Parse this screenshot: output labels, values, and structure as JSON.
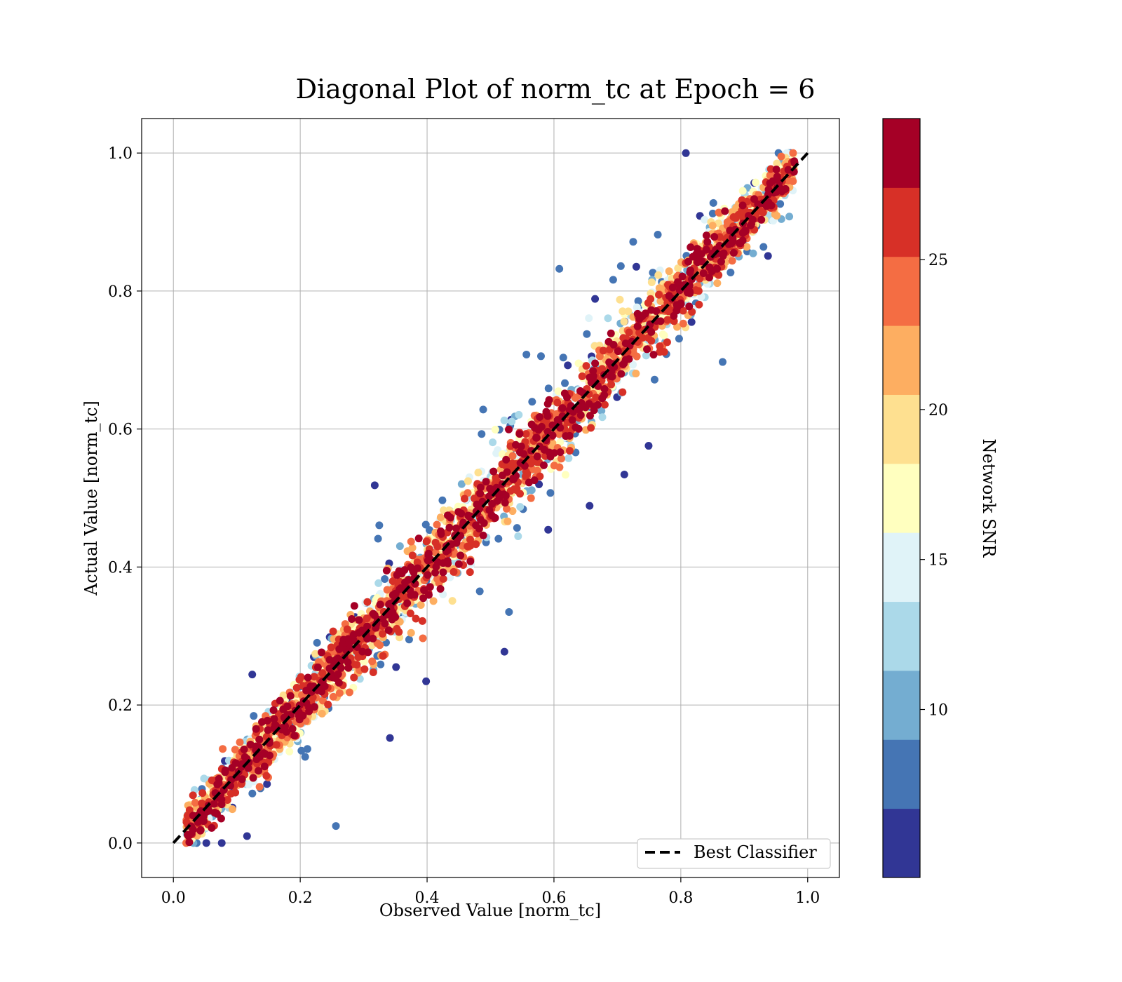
{
  "chart_data": {
    "type": "scatter",
    "title": "Diagonal Plot of norm_tc at Epoch = 6",
    "xlabel": "Observed Value [norm_tc]",
    "ylabel": "Actual Value [norm_tc]",
    "xlim": [
      -0.05,
      1.05
    ],
    "ylim": [
      -0.05,
      1.05
    ],
    "xticks": [
      "0.0",
      "0.2",
      "0.4",
      "0.6",
      "0.8",
      "1.0"
    ],
    "yticks": [
      "0.0",
      "0.2",
      "0.4",
      "0.6",
      "0.8",
      "1.0"
    ],
    "grid": true,
    "reference_line": {
      "label": "Best Classifier",
      "x": [
        0.0,
        1.0
      ],
      "y": [
        0.0,
        1.0
      ],
      "style": "dashed",
      "color": "#000000"
    },
    "legend": {
      "placement": "bottom-right",
      "entries": [
        "Best Classifier"
      ]
    },
    "colorbar": {
      "label": "Network SNR",
      "range": [
        4.4,
        29.7
      ],
      "ticks": [
        "10",
        "15",
        "20",
        "25"
      ],
      "colormap": "RdYlBu_r",
      "bands": [
        "#313695",
        "#4575b4",
        "#74add1",
        "#abd9e9",
        "#e0f3f8",
        "#ffffbf",
        "#fee090",
        "#fdae61",
        "#f46d43",
        "#d73027",
        "#a50026"
      ]
    },
    "series_description": "Dense scatter of points; high-SNR points (dark red) lie along y = x, low-SNR points (blue) spread widely away from the diagonal."
  }
}
